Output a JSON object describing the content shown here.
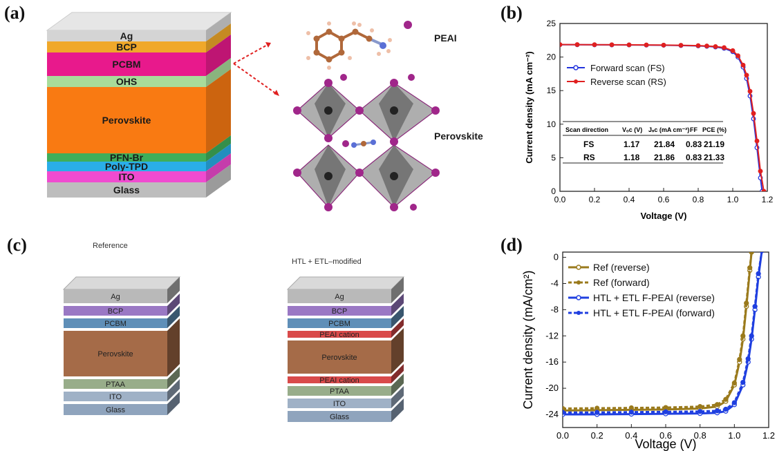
{
  "panel_labels": {
    "a": "(a)",
    "b": "(b)",
    "c": "(c)",
    "d": "(d)"
  },
  "panel_a": {
    "layers": [
      {
        "name": "Ag",
        "color": "#d4d4d4"
      },
      {
        "name": "BCP",
        "color": "#f0a82a"
      },
      {
        "name": "PCBM",
        "color": "#e8198c"
      },
      {
        "name": "OHS",
        "color": "#a8dc9a"
      },
      {
        "name": "Perovskite",
        "color": "#f97a12"
      },
      {
        "name": "PFN-Br",
        "color": "#3fae5a"
      },
      {
        "name": "Poly-TPD",
        "color": "#2aaee8"
      },
      {
        "name": "ITO",
        "color": "#f04bd0"
      },
      {
        "name": "Glass",
        "color": "#bdbdbd"
      }
    ],
    "molecule_label": "PEAI",
    "crystal_label": "Perovskite"
  },
  "panel_c": {
    "reference": {
      "title": "Reference",
      "layers": [
        {
          "name": "Ag",
          "color": "#b9b9b9"
        },
        {
          "name": "BCP",
          "color": "#9a78c4"
        },
        {
          "name": "PCBM",
          "color": "#5f8fb8"
        },
        {
          "name": "Perovskite",
          "color": "#a56b48"
        },
        {
          "name": "PTAA",
          "color": "#98ad8a"
        },
        {
          "name": "ITO",
          "color": "#9fb1c6"
        },
        {
          "name": "Glass",
          "color": "#8fa4bd"
        }
      ]
    },
    "modified": {
      "title": "HTL + ETL–modified",
      "layers": [
        {
          "name": "Ag",
          "color": "#b9b9b9"
        },
        {
          "name": "BCP",
          "color": "#9a78c4"
        },
        {
          "name": "PCBM",
          "color": "#5f8fb8"
        },
        {
          "name": "PEAI cation",
          "color": "#d94a4a"
        },
        {
          "name": "Perovskite",
          "color": "#a56b48"
        },
        {
          "name": "PEAI cation",
          "color": "#d94a4a"
        },
        {
          "name": "PTAA",
          "color": "#98ad8a"
        },
        {
          "name": "ITO",
          "color": "#9fb1c6"
        },
        {
          "name": "Glass",
          "color": "#8fa4bd"
        }
      ]
    }
  },
  "chart_data": [
    {
      "panel": "b",
      "type": "line",
      "xlabel": "Voltage (V)",
      "ylabel": "Current density (mA cm⁻²)",
      "xlim": [
        0,
        1.2
      ],
      "ylim": [
        0,
        25
      ],
      "xticks": [
        "0.0",
        "0.2",
        "0.4",
        "0.6",
        "0.8",
        "1.0",
        "1.2"
      ],
      "yticks": [
        "0",
        "5",
        "10",
        "15",
        "20",
        "25"
      ],
      "legend_position": "upper-left",
      "series": [
        {
          "name": "Forward scan (FS)",
          "color": "#2233dd",
          "x": [
            0,
            0.1,
            0.2,
            0.3,
            0.4,
            0.5,
            0.6,
            0.7,
            0.8,
            0.85,
            0.9,
            0.95,
            1.0,
            1.03,
            1.06,
            1.08,
            1.1,
            1.12,
            1.14,
            1.16,
            1.17
          ],
          "y": [
            21.84,
            21.83,
            21.82,
            21.81,
            21.8,
            21.78,
            21.76,
            21.72,
            21.66,
            21.6,
            21.5,
            21.3,
            20.8,
            20.0,
            18.5,
            16.8,
            14.2,
            10.8,
            6.5,
            2.0,
            0
          ]
        },
        {
          "name": "Reverse scan (RS)",
          "color": "#e02020",
          "x": [
            0,
            0.1,
            0.2,
            0.3,
            0.4,
            0.5,
            0.6,
            0.7,
            0.8,
            0.85,
            0.9,
            0.95,
            1.0,
            1.03,
            1.06,
            1.08,
            1.1,
            1.12,
            1.14,
            1.16,
            1.18
          ],
          "y": [
            21.86,
            21.85,
            21.84,
            21.83,
            21.82,
            21.8,
            21.78,
            21.75,
            21.7,
            21.65,
            21.56,
            21.4,
            20.95,
            20.2,
            18.8,
            17.3,
            14.9,
            11.6,
            7.5,
            3.0,
            0
          ]
        }
      ],
      "table": {
        "headers": [
          "Scan direction",
          "Vₒc (V)",
          "Jₛc (mA cm⁻²)",
          "FF",
          "PCE (%)"
        ],
        "rows": [
          [
            "FS",
            "1.17",
            "21.84",
            "0.83",
            "21.19"
          ],
          [
            "RS",
            "1.18",
            "21.86",
            "0.83",
            "21.33"
          ]
        ]
      }
    },
    {
      "panel": "d",
      "type": "line",
      "xlabel": "Voltage (V)",
      "ylabel": "Current density (mA/cm²)",
      "xlim": [
        0,
        1.2
      ],
      "ylim": [
        -26,
        0.8
      ],
      "xticks": [
        "0.0",
        "0.2",
        "0.4",
        "0.6",
        "0.8",
        "1.0",
        "1.2"
      ],
      "yticks": [
        "0",
        "-4",
        "-8",
        "-12",
        "-16",
        "-20",
        "-24"
      ],
      "legend_position": "upper-left",
      "series": [
        {
          "name": "Ref (reverse)",
          "color": "#9a7a1c",
          "style": "solid",
          "x": [
            0,
            0.2,
            0.4,
            0.6,
            0.8,
            0.9,
            0.95,
            1.0,
            1.03,
            1.05,
            1.07,
            1.09,
            1.1
          ],
          "y": [
            -23.4,
            -23.35,
            -23.3,
            -23.25,
            -23.1,
            -22.8,
            -22.0,
            -19.5,
            -16.0,
            -12.5,
            -7.5,
            -2.0,
            0.8
          ]
        },
        {
          "name": "Ref (forward)",
          "color": "#9a7a1c",
          "style": "dashed",
          "x": [
            0,
            0.2,
            0.4,
            0.6,
            0.8,
            0.9,
            0.95,
            1.0,
            1.03,
            1.05,
            1.07,
            1.09,
            1.1
          ],
          "y": [
            -23.1,
            -23.05,
            -23.0,
            -22.95,
            -22.8,
            -22.5,
            -21.7,
            -19.2,
            -15.6,
            -12.0,
            -7.0,
            -1.6,
            0.8
          ]
        },
        {
          "name": "HTL + ETL F-PEAI (reverse)",
          "color": "#1f3fe0",
          "style": "solid",
          "x": [
            0,
            0.2,
            0.4,
            0.6,
            0.8,
            0.9,
            0.95,
            1.0,
            1.05,
            1.08,
            1.1,
            1.12,
            1.14,
            1.16
          ],
          "y": [
            -24.0,
            -24.0,
            -23.95,
            -23.9,
            -23.85,
            -23.75,
            -23.5,
            -22.5,
            -19.5,
            -16.0,
            -12.5,
            -8.0,
            -3.0,
            1.0
          ]
        },
        {
          "name": "HTL + ETL F-PEAI (forward)",
          "color": "#1f3fe0",
          "style": "dashed",
          "x": [
            0,
            0.2,
            0.4,
            0.6,
            0.8,
            0.9,
            0.95,
            1.0,
            1.05,
            1.08,
            1.1,
            1.12,
            1.14,
            1.16
          ],
          "y": [
            -23.7,
            -23.7,
            -23.65,
            -23.6,
            -23.55,
            -23.45,
            -23.2,
            -22.2,
            -19.1,
            -15.5,
            -12.0,
            -7.5,
            -2.5,
            1.0
          ]
        }
      ]
    }
  ]
}
